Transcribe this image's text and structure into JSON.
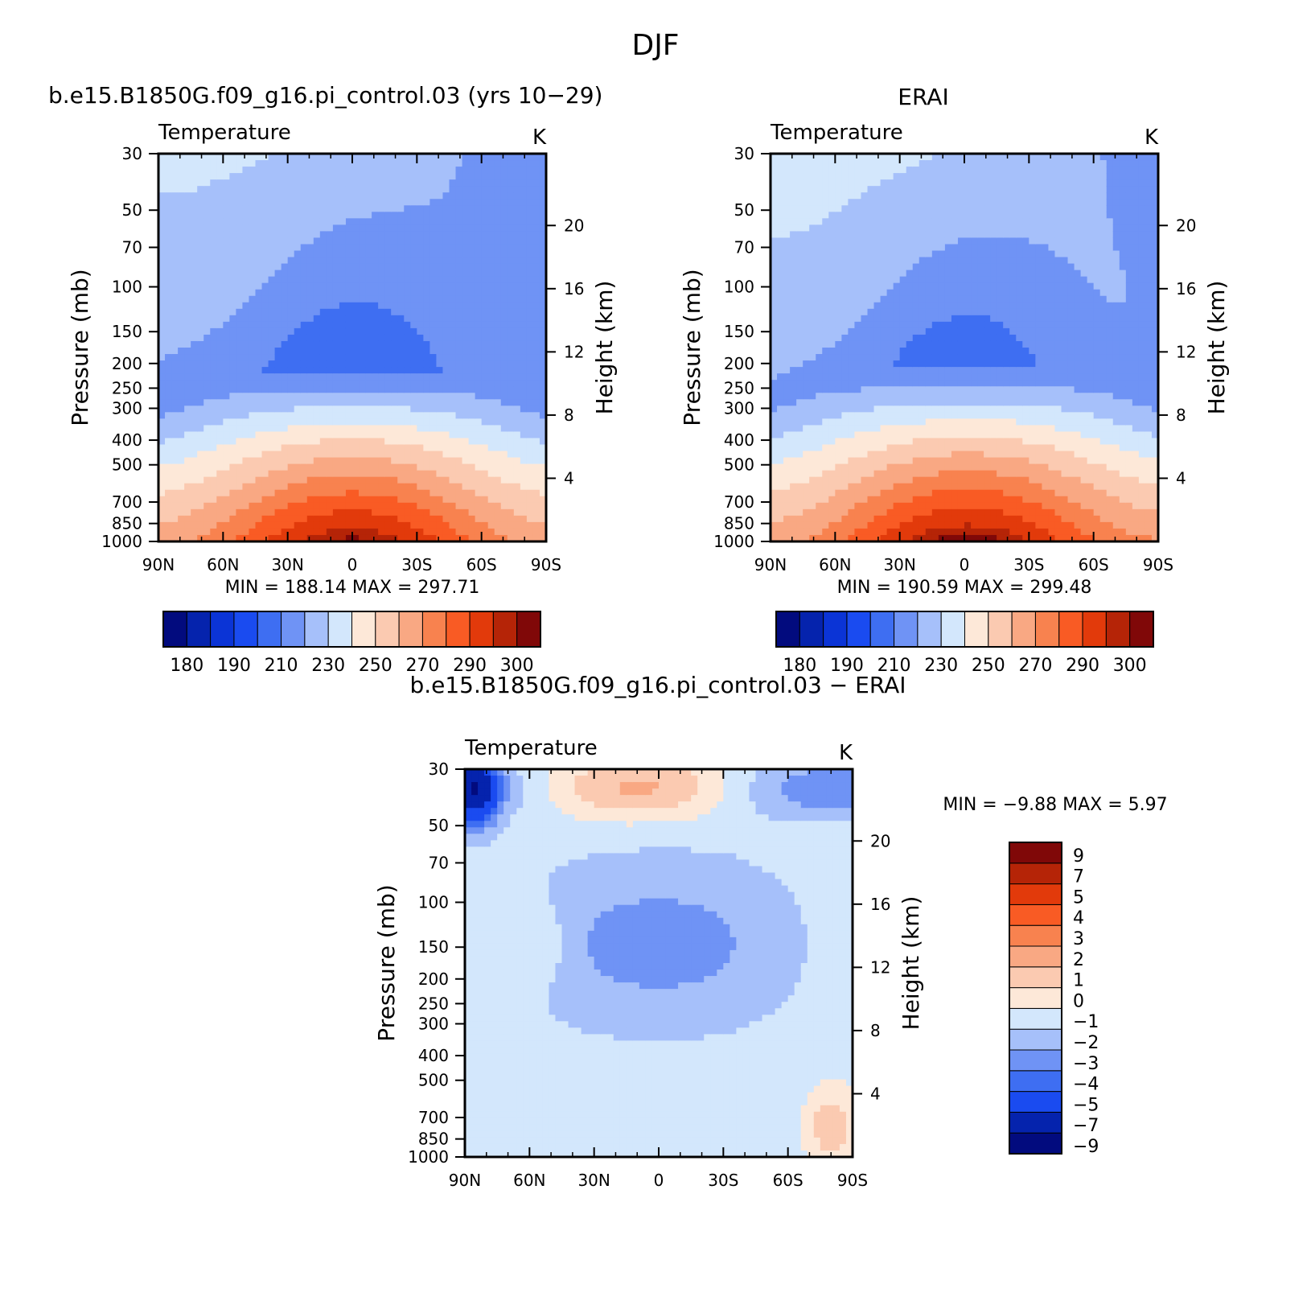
{
  "page": {
    "title": "DJF"
  },
  "palettes": {
    "abs": [
      "#020b7e",
      "#0523ad",
      "#0b34d6",
      "#1a4bf0",
      "#3e6ef2",
      "#6f93f5",
      "#a6c0fa",
      "#d3e7fc",
      "#fde8d8",
      "#fbcab1",
      "#f9a883",
      "#f8824f",
      "#f95b24",
      "#e23a0b",
      "#b52407",
      "#800808"
    ],
    "diff": [
      "#020b7e",
      "#0523ad",
      "#1a4bf0",
      "#3e6ef2",
      "#6f93f5",
      "#a6c0fa",
      "#d3e7fc",
      "#fde8d8",
      "#fbcab1",
      "#f9a883",
      "#f8824f",
      "#f95b24",
      "#e23a0b",
      "#b52407",
      "#800808"
    ]
  },
  "chart_data": [
    {
      "type": "heatmap",
      "title": "b.e15.B1850G.f09_g16.pi_control.03 (yrs 10−29)",
      "left_label": "Temperature",
      "right_label": "K",
      "xlabel": "",
      "ylabel": "Pressure (mb)",
      "y2label": "Height (km)",
      "x_ticklabels": [
        "90N",
        "60N",
        "30N",
        "0",
        "30S",
        "60S",
        "90S"
      ],
      "y_ticklabels": [
        "30",
        "50",
        "70",
        "100",
        "150",
        "200",
        "250",
        "300",
        "400",
        "500",
        "700",
        "850",
        "1000"
      ],
      "y2_ticklabels": [
        "20",
        "16",
        "12",
        "8",
        "4"
      ],
      "min_label": "MIN",
      "min_value": "188.14",
      "max_label": "MAX",
      "max_value": "297.71",
      "colorbar_labels": [
        "180",
        "190",
        "210",
        "230",
        "250",
        "270",
        "290",
        "300"
      ],
      "levels": [
        175,
        180,
        185,
        190,
        200,
        210,
        220,
        230,
        240,
        250,
        260,
        270,
        280,
        290,
        295,
        300
      ],
      "params": {
        "strat": 210,
        "tcenter": 196,
        "ttrop": 266,
        "tsurf": 297,
        "asym": 0
      }
    },
    {
      "type": "heatmap",
      "title": "ERAI",
      "left_label": "Temperature",
      "right_label": "K",
      "xlabel": "",
      "ylabel": "Pressure (mb)",
      "y2label": "Height (km)",
      "x_ticklabels": [
        "90N",
        "60N",
        "30N",
        "0",
        "30S",
        "60S",
        "90S"
      ],
      "y_ticklabels": [
        "30",
        "50",
        "70",
        "100",
        "150",
        "200",
        "250",
        "300",
        "400",
        "500",
        "700",
        "850",
        "1000"
      ],
      "y2_ticklabels": [
        "20",
        "16",
        "12",
        "8",
        "4"
      ],
      "min_label": "MIN",
      "min_value": "190.59",
      "max_label": "MAX",
      "max_value": "299.48",
      "colorbar_labels": [
        "180",
        "190",
        "210",
        "230",
        "250",
        "270",
        "290",
        "300"
      ],
      "levels": [
        175,
        180,
        185,
        190,
        200,
        210,
        220,
        230,
        240,
        250,
        260,
        270,
        280,
        290,
        295,
        300
      ],
      "params": {
        "strat": 212,
        "tcenter": 198,
        "ttrop": 268,
        "tsurf": 299,
        "asym": 0.2
      }
    },
    {
      "type": "heatmap",
      "title": "b.e15.B1850G.f09_g16.pi_control.03 − ERAI",
      "left_label": "Temperature",
      "right_label": "K",
      "xlabel": "",
      "ylabel": "Pressure (mb)",
      "y2label": "Height (km)",
      "x_ticklabels": [
        "90N",
        "60N",
        "30N",
        "0",
        "30S",
        "60S",
        "90S"
      ],
      "y_ticklabels": [
        "30",
        "50",
        "70",
        "100",
        "150",
        "200",
        "250",
        "300",
        "400",
        "500",
        "700",
        "850",
        "1000"
      ],
      "y2_ticklabels": [
        "20",
        "16",
        "12",
        "8",
        "4"
      ],
      "min_label": "MIN",
      "min_value": "−9.88",
      "max_label": "MAX",
      "max_value": "5.97",
      "colorbar_labels": [
        "9",
        "7",
        "5",
        "4",
        "3",
        "2",
        "1",
        "0",
        "−1",
        "−2",
        "−3",
        "−4",
        "−5",
        "−7",
        "−9"
      ],
      "levels": [
        -9,
        -7,
        -5,
        -4,
        -3,
        -2,
        -1,
        0,
        1,
        2,
        3,
        4,
        5,
        7,
        9
      ]
    }
  ]
}
